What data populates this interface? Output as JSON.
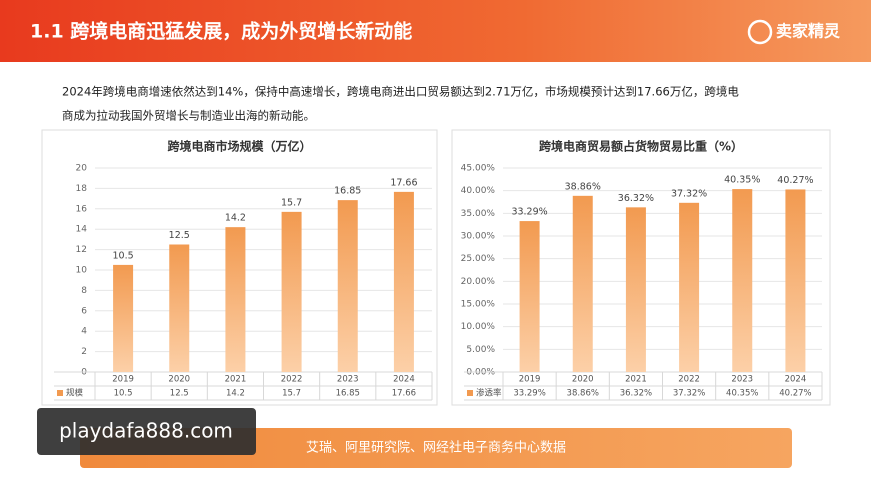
{
  "header": {
    "title": "1.1   跨境电商迅猛发展，成为外贸增长新动能",
    "logo": "卖家精灵"
  },
  "body": {
    "lines": [
      "2024年跨境电商增速依然达到14%，保持中高速增长，跨境电商进出口贸易额达到2.71万亿，市场规模预计达到17.66万亿，跨境电",
      "商成为拉动我国外贸增长与制造业出海的新动能。"
    ]
  },
  "chart_data": [
    {
      "type": "bar",
      "title": "跨境电商市场规模（万亿）",
      "categories": [
        "2019",
        "2020",
        "2021",
        "2022",
        "2023",
        "2024"
      ],
      "series": [
        {
          "name": "规模",
          "color": "#f29a50",
          "values": [
            10.5,
            12.5,
            14.2,
            15.7,
            16.85,
            17.66
          ]
        }
      ],
      "ylim": [
        0,
        20
      ],
      "yticks": [
        0,
        2,
        4,
        6,
        8,
        10,
        12,
        14,
        16,
        18,
        20
      ],
      "grid": true
    },
    {
      "type": "bar",
      "title": "跨境电商贸易额占货物贸易比重（%）",
      "categories": [
        "2019",
        "2020",
        "2021",
        "2022",
        "2023",
        "2024"
      ],
      "series": [
        {
          "name": "渗透率",
          "color": "#f29a50",
          "values": [
            33.29,
            38.86,
            36.32,
            37.32,
            40.35,
            40.27
          ],
          "value_labels": [
            "33.29%",
            "38.86%",
            "36.32%",
            "37.32%",
            "40.35%",
            "40.27%"
          ]
        }
      ],
      "ylim": [
        0,
        45
      ],
      "yticks": [
        {
          "value": 0,
          "label": "0.00%"
        },
        {
          "value": 5,
          "label": "5.00%"
        },
        {
          "value": 10,
          "label": "10.00%"
        },
        {
          "value": 15,
          "label": "15.00%"
        },
        {
          "value": 20,
          "label": "20.00%"
        },
        {
          "value": 25,
          "label": "25.00%"
        },
        {
          "value": 30,
          "label": "30.00%"
        },
        {
          "value": 35,
          "label": "35.00%"
        },
        {
          "value": 40,
          "label": "40.00%"
        },
        {
          "value": 45,
          "label": "45.00%"
        }
      ],
      "grid": true
    }
  ],
  "source": "艾瑞、阿里研究院、网经社电子商务中心数据",
  "watermark": "playdafa888.com"
}
